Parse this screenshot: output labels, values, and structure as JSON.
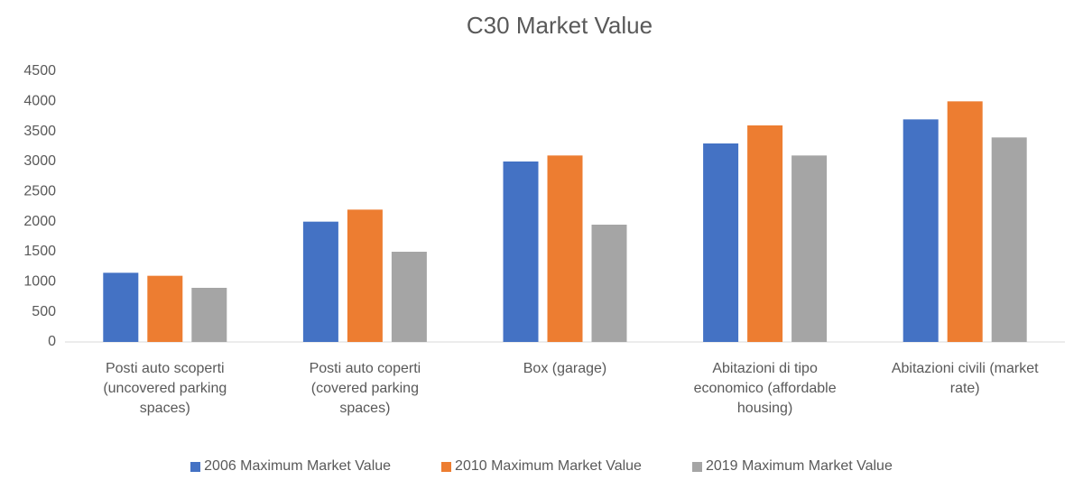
{
  "chart_data": {
    "type": "bar",
    "title": "C30 Market Value",
    "categories": [
      "Posti auto scoperti (uncovered parking spaces)",
      "Posti auto coperti (covered parking spaces)",
      "Box (garage)",
      "Abitazioni di tipo economico (affordable housing)",
      "Abitazioni civili (market rate)"
    ],
    "series": [
      {
        "name": "2006 Maximum Market Value",
        "color": "#4472c4",
        "values": [
          1150,
          2000,
          3000,
          3300,
          3700
        ]
      },
      {
        "name": "2010 Maximum Market Value",
        "color": "#ed7d31",
        "values": [
          1100,
          2200,
          3100,
          3600,
          4000
        ]
      },
      {
        "name": "2019 Maximum Market Value",
        "color": "#a5a5a5",
        "values": [
          900,
          1500,
          1950,
          3100,
          3400
        ]
      }
    ],
    "ylim": [
      0,
      4500
    ],
    "yticks": [
      0,
      500,
      1000,
      1500,
      2000,
      2500,
      3000,
      3500,
      4000,
      4500
    ],
    "grid": false,
    "legend": "bottom"
  }
}
